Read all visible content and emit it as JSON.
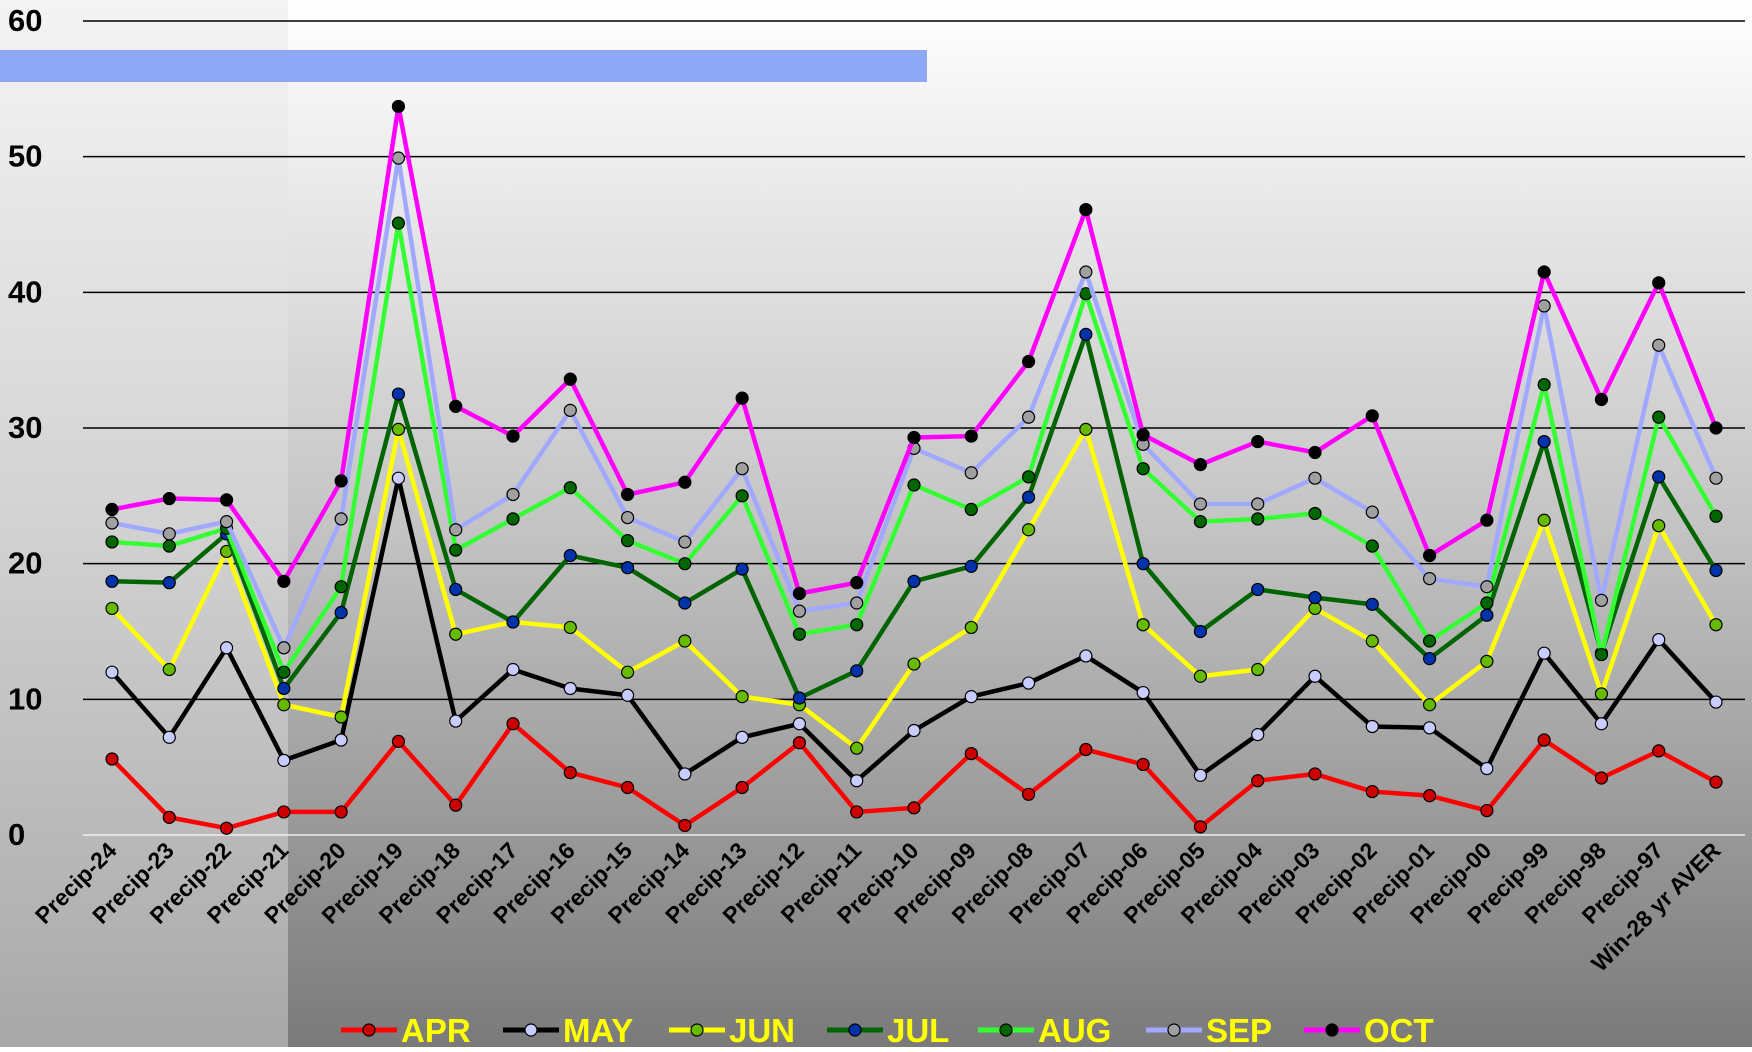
{
  "chart_data": {
    "type": "line",
    "categories": [
      "Precip-24",
      "Precip-23",
      "Precip-22",
      "Precip-21",
      "Precip-20",
      "Precip-19",
      "Precip-18",
      "Precip-17",
      "Precip-16",
      "Precip-15",
      "Precip-14",
      "Precip-13",
      "Precip-12",
      "Precip-11",
      "Precip-10",
      "Precip-09",
      "Precip-08",
      "Precip-07",
      "Precip-06",
      "Precip-05",
      "Precip-04",
      "Precip-03",
      "Precip-02",
      "Precip-01",
      "Precip-00",
      "Precip-99",
      "Precip-98",
      "Precip-97",
      "Win-28 yr  AVER"
    ],
    "series": [
      {
        "name": "APR",
        "color": "#ff0000",
        "marker_color": "#cc0000",
        "values": [
          5.6,
          1.3,
          0.5,
          1.7,
          1.7,
          6.9,
          2.2,
          8.2,
          4.6,
          3.5,
          0.7,
          3.5,
          6.8,
          1.7,
          2.0,
          6.0,
          3.0,
          6.3,
          5.2,
          0.6,
          4.0,
          4.5,
          3.2,
          2.9,
          1.8,
          7.0,
          4.2,
          6.2,
          3.9
        ]
      },
      {
        "name": "MAY",
        "color": "#000000",
        "marker_color": "#c8ccff",
        "values": [
          12.0,
          7.2,
          13.8,
          5.5,
          7.0,
          26.3,
          8.4,
          12.2,
          10.8,
          10.3,
          4.5,
          7.2,
          8.2,
          4.0,
          7.7,
          10.2,
          11.2,
          13.2,
          10.5,
          4.4,
          7.4,
          11.7,
          8.0,
          7.9,
          4.9,
          13.4,
          8.2,
          14.4,
          9.8
        ]
      },
      {
        "name": "JUN",
        "color": "#ffff00",
        "marker_color": "#66bb00",
        "values": [
          16.7,
          12.2,
          20.9,
          9.6,
          8.7,
          29.9,
          14.8,
          15.7,
          15.3,
          12.0,
          14.3,
          10.2,
          9.6,
          6.4,
          12.6,
          15.3,
          22.5,
          29.9,
          15.5,
          11.7,
          12.2,
          16.7,
          14.3,
          9.6,
          12.8,
          23.2,
          10.4,
          22.8,
          15.5
        ]
      },
      {
        "name": "JUL",
        "color": "#006400",
        "marker_color": "#0033aa",
        "values": [
          18.7,
          18.6,
          22.2,
          10.8,
          16.4,
          32.5,
          18.1,
          15.7,
          20.6,
          19.7,
          17.1,
          19.6,
          10.1,
          12.1,
          18.7,
          19.8,
          24.9,
          36.9,
          20.0,
          15.0,
          18.1,
          17.5,
          17.0,
          13.0,
          16.2,
          29.0,
          13.4,
          26.4,
          19.5
        ]
      },
      {
        "name": "AUG",
        "color": "#33ff33",
        "marker_color": "#006600",
        "values": [
          21.6,
          21.3,
          22.6,
          12.0,
          18.3,
          45.1,
          21.0,
          23.3,
          25.6,
          21.7,
          20.0,
          25.0,
          14.8,
          15.5,
          25.8,
          24.0,
          26.4,
          39.9,
          27.0,
          23.1,
          23.3,
          23.7,
          21.3,
          14.3,
          17.1,
          33.2,
          13.3,
          30.8,
          23.5
        ]
      },
      {
        "name": "SEP",
        "color": "#a0a8ff",
        "marker_color": "#a0a0a0",
        "values": [
          23.0,
          22.2,
          23.1,
          13.8,
          23.3,
          49.9,
          22.5,
          25.1,
          31.3,
          23.4,
          21.6,
          27.0,
          16.5,
          17.1,
          28.5,
          26.7,
          30.8,
          41.5,
          28.8,
          24.4,
          24.4,
          26.3,
          23.8,
          18.9,
          18.3,
          39.0,
          17.3,
          36.1,
          26.3
        ]
      },
      {
        "name": "OCT",
        "color": "#ff00ff",
        "marker_color": "#000000",
        "values": [
          24.0,
          24.8,
          24.7,
          18.7,
          26.1,
          53.7,
          31.6,
          29.4,
          33.6,
          25.1,
          26.0,
          32.2,
          17.8,
          18.6,
          29.3,
          29.4,
          34.9,
          46.1,
          29.5,
          27.3,
          29.0,
          28.2,
          30.9,
          20.6,
          23.2,
          41.5,
          32.1,
          40.7,
          30.0
        ]
      }
    ],
    "ylim": [
      0,
      60
    ],
    "yticks": [
      0,
      10,
      20,
      30,
      40,
      50,
      60
    ],
    "grid": true,
    "legend": "bottom"
  }
}
